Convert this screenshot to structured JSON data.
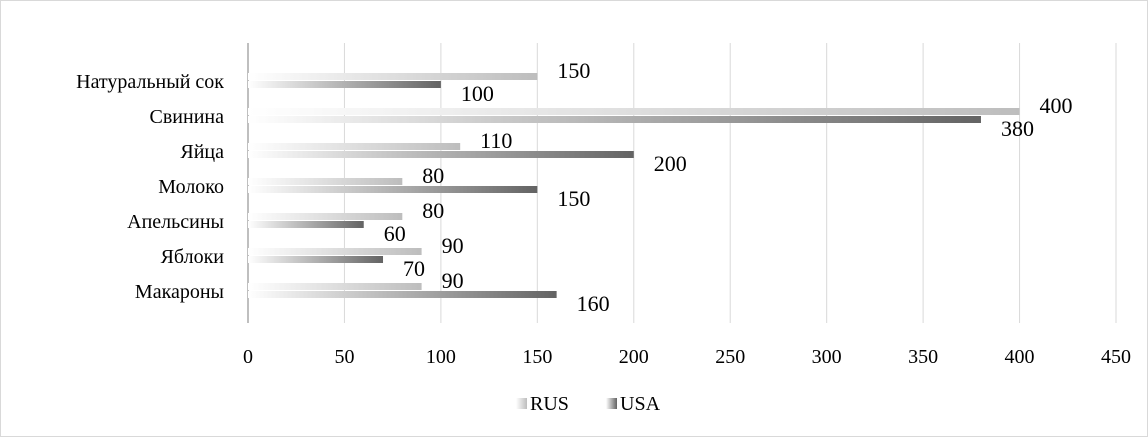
{
  "chart_data": {
    "type": "bar",
    "orientation": "horizontal",
    "categories": [
      "Натуральный сок",
      "Свинина",
      "Яйца",
      "Молоко",
      "Апельсины",
      "Яблоки",
      "Макароны"
    ],
    "series": [
      {
        "name": "RUS",
        "values": [
          150,
          400,
          110,
          80,
          80,
          90,
          90
        ],
        "color": "#bdbdbd"
      },
      {
        "name": "USA",
        "values": [
          100,
          380,
          200,
          150,
          60,
          70,
          160
        ],
        "color": "#6e6e6e"
      }
    ],
    "x_ticks": [
      0,
      50,
      100,
      150,
      200,
      250,
      300,
      350,
      400,
      450
    ],
    "xlim": [
      0,
      450
    ],
    "grid": "vertical",
    "legend": "bottom-center",
    "data_labels": true,
    "title": "",
    "xlabel": "",
    "ylabel": ""
  }
}
